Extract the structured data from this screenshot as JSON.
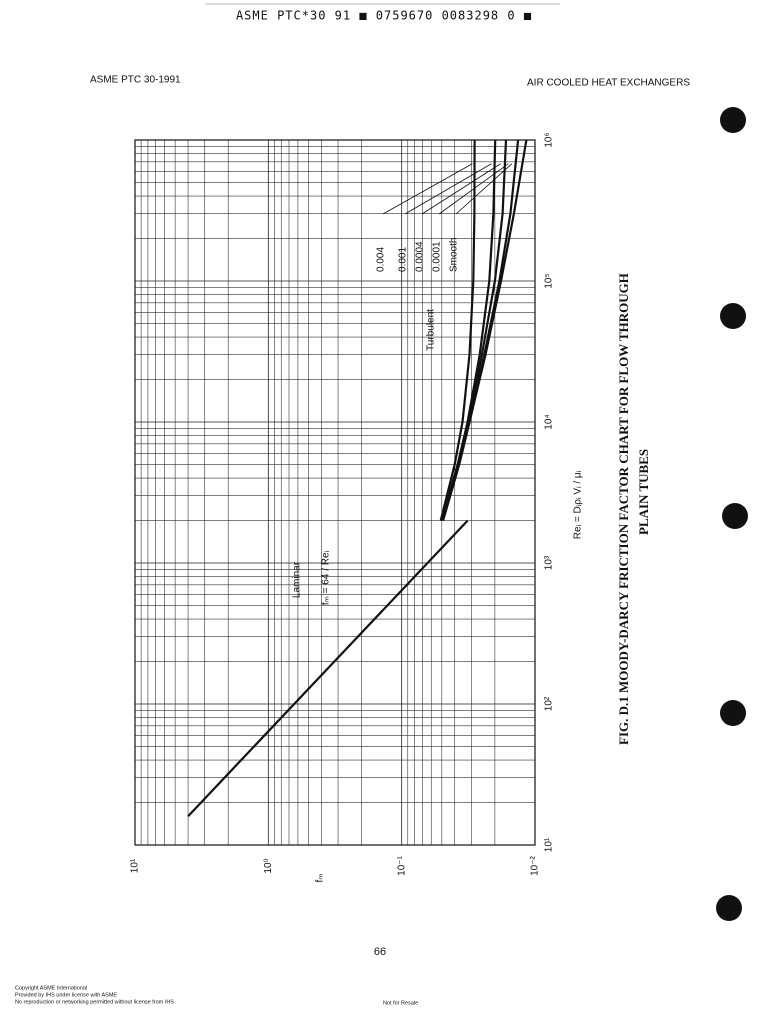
{
  "header": {
    "code": "ASME PTC*30 91 ■ 0759670 0083298 0 ■",
    "left": "ASME PTC 30-1991",
    "right": "AIR COOLED HEAT EXCHANGERS"
  },
  "chart_data": {
    "type": "line",
    "title": "FIG. D.1   MOODY-DARCY FRICTION FACTOR CHART FOR FLOW THROUGH",
    "subtitle": "PLAIN TUBES",
    "x_label": "Reᵢ = Dᵢρᵢ Vᵢ / μᵢ",
    "y_label": "fₘ",
    "x_log": true,
    "y_log": true,
    "grid": true,
    "xlim": [
      10,
      1000000
    ],
    "ylim": [
      0.01,
      10
    ],
    "xticks": [
      {
        "value": 10,
        "label": "10¹"
      },
      {
        "value": 100,
        "label": "10²"
      },
      {
        "value": 1000,
        "label": "10³"
      },
      {
        "value": 10000,
        "label": "10⁴"
      },
      {
        "value": 100000,
        "label": "10⁵"
      },
      {
        "value": 1000000,
        "label": "10⁶"
      }
    ],
    "yticks": [
      {
        "value": 10,
        "label": "10¹"
      },
      {
        "value": 1,
        "label": "10⁰"
      },
      {
        "value": 0.1,
        "label": "10⁻¹"
      },
      {
        "value": 0.01,
        "label": "10⁻²"
      }
    ],
    "annotations": {
      "laminar_formula": "fₘ = 64 / Reᵢ",
      "turbulent": "Turbulent"
    },
    "series": [
      {
        "name": "Laminar",
        "color": "#111",
        "x": [
          16,
          2000
        ],
        "values": [
          4,
          0.032
        ]
      },
      {
        "name": "Smooth",
        "color": "#111",
        "x": [
          2000,
          5000,
          10000,
          30000,
          100000,
          300000,
          1000000
        ],
        "values": [
          0.049,
          0.037,
          0.031,
          0.0235,
          0.018,
          0.0144,
          0.0116
        ]
      },
      {
        "name": "0.0001",
        "color": "#111",
        "x": [
          2000,
          5000,
          10000,
          30000,
          100000,
          300000,
          1000000
        ],
        "values": [
          0.049,
          0.037,
          0.031,
          0.024,
          0.0185,
          0.0153,
          0.0134
        ]
      },
      {
        "name": "0.0004",
        "color": "#111",
        "x": [
          2000,
          5000,
          10000,
          30000,
          100000,
          300000,
          1000000
        ],
        "values": [
          0.05,
          0.038,
          0.0315,
          0.025,
          0.02,
          0.0175,
          0.0165
        ]
      },
      {
        "name": "0.001",
        "color": "#111",
        "x": [
          2000,
          5000,
          10000,
          30000,
          100000,
          300000,
          1000000
        ],
        "values": [
          0.05,
          0.038,
          0.032,
          0.026,
          0.022,
          0.0205,
          0.0199
        ]
      },
      {
        "name": "0.004",
        "color": "#111",
        "x": [
          2000,
          5000,
          10000,
          30000,
          100000,
          300000,
          1000000
        ],
        "values": [
          0.051,
          0.04,
          0.035,
          0.031,
          0.029,
          0.0285,
          0.0284
        ]
      }
    ]
  },
  "page_number": "66",
  "footer": {
    "line1": "Copyright ASME International",
    "line2": "Provided by IHS under license with ASME",
    "line3": "No reproduction or networking permitted without license from IHS",
    "resale": "Not for Resale"
  }
}
